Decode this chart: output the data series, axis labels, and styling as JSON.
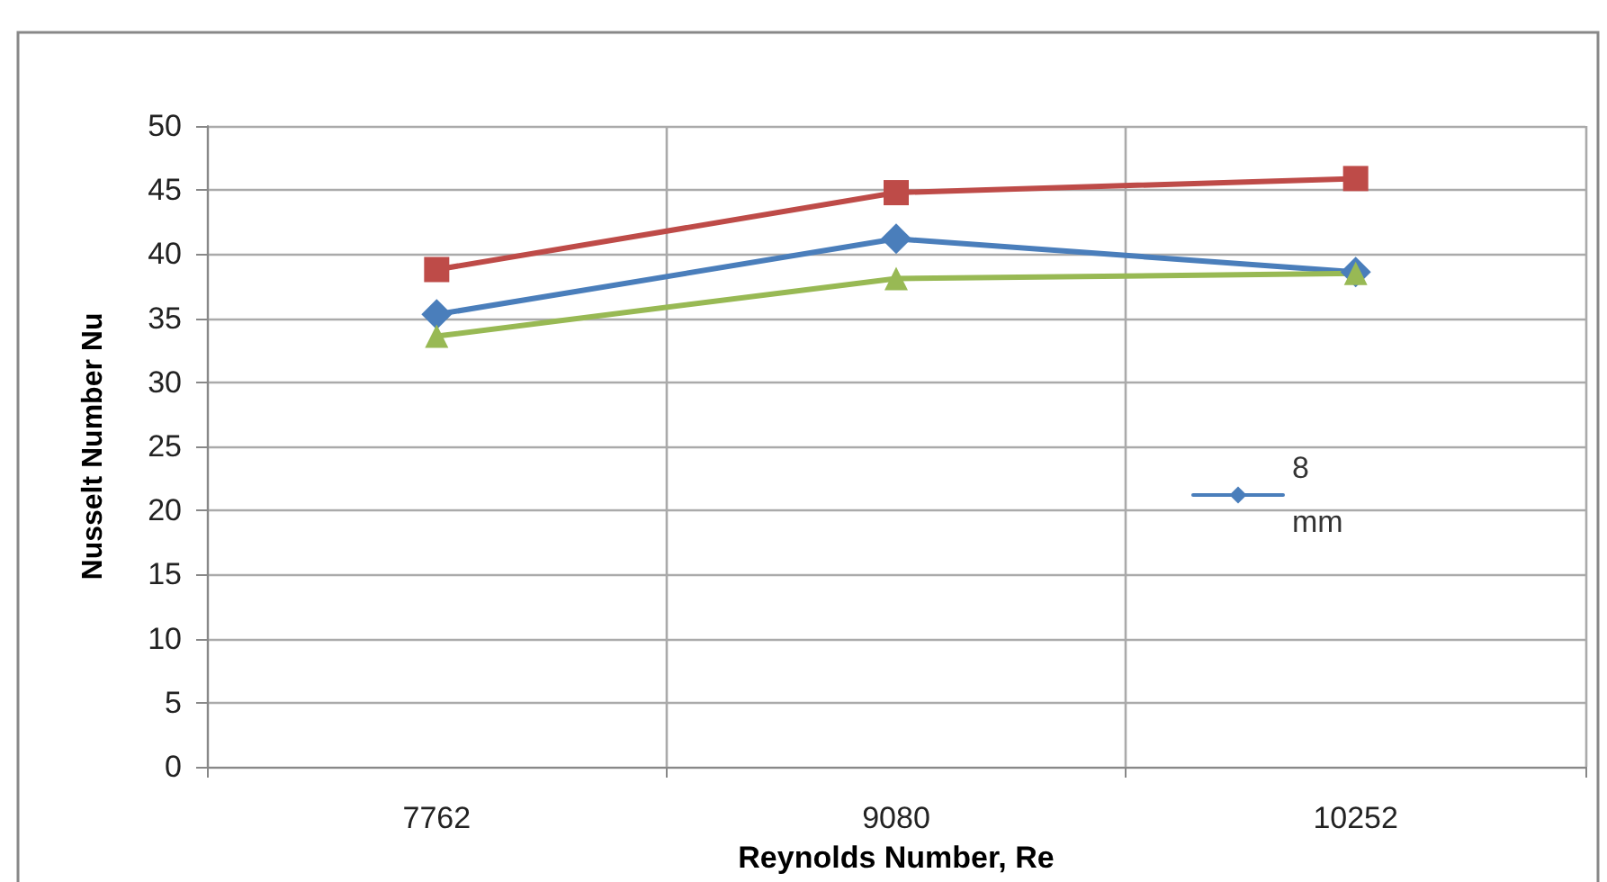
{
  "chart_data": {
    "type": "line",
    "xlabel": "Reynolds Number, Re",
    "ylabel": "Nusselt Number Nu",
    "categories": [
      "7762",
      "9080",
      "10252"
    ],
    "series": [
      {
        "name": "8 mm",
        "color": "#4a7ebb",
        "marker": "diamond",
        "values": [
          35.3,
          41.2,
          38.6
        ]
      },
      {
        "color": "#be4b48",
        "marker": "square",
        "values": [
          38.8,
          44.8,
          45.9
        ]
      },
      {
        "color": "#98b954",
        "marker": "triangle",
        "values": [
          33.6,
          38.1,
          38.5
        ]
      }
    ],
    "ylim": [
      0,
      50
    ],
    "yticks": [
      0,
      5,
      10,
      15,
      20,
      25,
      30,
      35,
      40,
      45,
      50
    ],
    "grid": true,
    "legend": "right"
  }
}
